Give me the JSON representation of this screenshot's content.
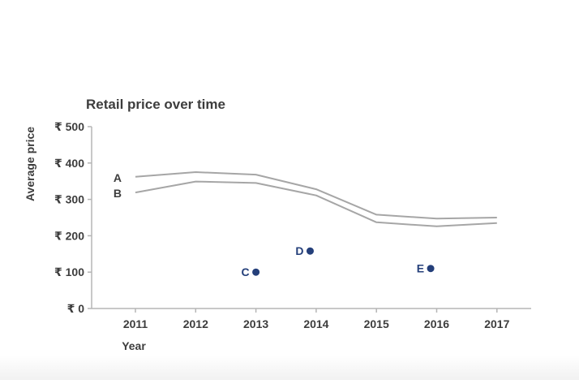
{
  "chart_data": {
    "type": "line",
    "title": "Retail price over time",
    "xlabel": "Year",
    "ylabel": "Average price",
    "categories": [
      "2011",
      "2012",
      "2013",
      "2014",
      "2015",
      "2016",
      "2017"
    ],
    "ylim": [
      0,
      500
    ],
    "yticks": [
      {
        "value": 0,
        "label": "₹ 0"
      },
      {
        "value": 100,
        "label": "₹ 100"
      },
      {
        "value": 200,
        "label": "₹ 200"
      },
      {
        "value": 300,
        "label": "₹ 300"
      },
      {
        "value": 400,
        "label": "₹ 400"
      },
      {
        "value": 500,
        "label": "₹ 500"
      }
    ],
    "grid": false,
    "series": [
      {
        "name": "A",
        "color": "#a6a6a6",
        "values": [
          362,
          375,
          368,
          328,
          258,
          247,
          250
        ]
      },
      {
        "name": "B",
        "color": "#a6a6a6",
        "values": [
          319,
          349,
          345,
          311,
          237,
          226,
          235
        ]
      }
    ],
    "points": [
      {
        "label": "C",
        "x": 2013,
        "y": 100,
        "color": "#243f7a"
      },
      {
        "label": "D",
        "x": 2013.9,
        "y": 158,
        "color": "#243f7a"
      },
      {
        "label": "E",
        "x": 2015.9,
        "y": 110,
        "color": "#243f7a"
      }
    ]
  }
}
